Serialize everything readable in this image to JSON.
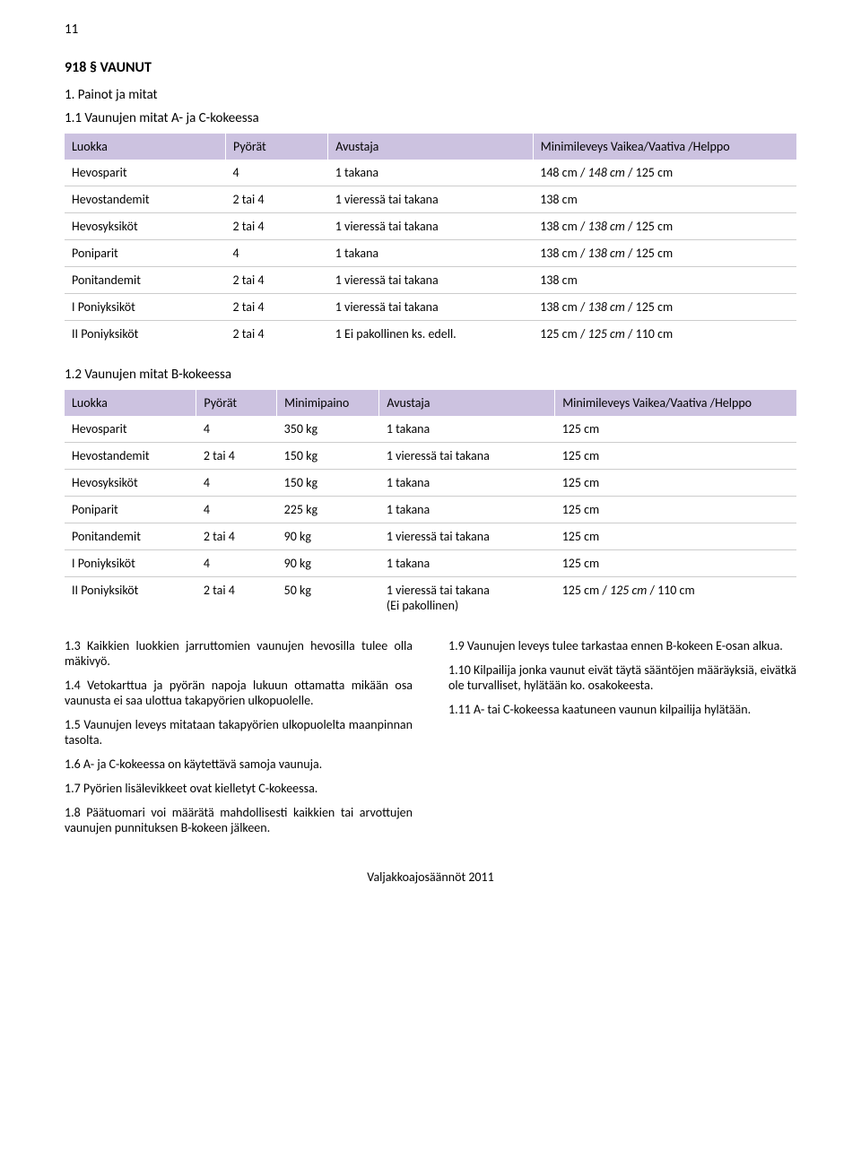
{
  "page_number": "11",
  "section_title": "918 § VAUNUT",
  "intro_1": "1. Painot ja mitat",
  "intro_2": "1.1 Vaunujen mitat A- ja C-kokeessa",
  "table1": {
    "headers": [
      "Luokka",
      "Pyörät",
      "Avustaja",
      "Minimileveys Vaikea/Vaativa /Helppo"
    ],
    "rows": [
      [
        "Hevosparit",
        "4",
        "1 takana",
        "148 cm / 148 cm / 125 cm"
      ],
      [
        "Hevostandemit",
        "2 tai 4",
        "1 vieressä tai takana",
        "138 cm"
      ],
      [
        "Hevosyksiköt",
        "2 tai 4",
        "1 vieressä tai takana",
        "138 cm / 138 cm / 125 cm"
      ],
      [
        "Poniparit",
        "4",
        "1 takana",
        "138 cm / 138 cm / 125 cm"
      ],
      [
        "Ponitandemit",
        "2 tai 4",
        "1 vieressä tai takana",
        "138 cm"
      ],
      [
        "I Poniyksiköt",
        "2 tai 4",
        "1 vieressä tai takana",
        "138 cm / 138 cm / 125 cm"
      ],
      [
        "II Poniyksiköt",
        "2 tai 4",
        "1 Ei pakollinen ks. edell.",
        "125 cm / 125 cm / 110 cm"
      ]
    ]
  },
  "intro_3": "1.2 Vaunujen mitat B-kokeessa",
  "table2": {
    "headers": [
      "Luokka",
      "Pyörät",
      "Minimipaino",
      "Avustaja",
      "Minimileveys Vaikea/Vaativa /Helppo"
    ],
    "rows": [
      [
        "Hevosparit",
        "4",
        "350 kg",
        "1 takana",
        "125 cm"
      ],
      [
        "Hevostandemit",
        "2 tai 4",
        "150 kg",
        "1 vieressä tai takana",
        "125 cm"
      ],
      [
        "Hevosyksiköt",
        "4",
        "150 kg",
        "1 takana",
        "125 cm"
      ],
      [
        "Poniparit",
        "4",
        "225 kg",
        "1 takana",
        "125 cm"
      ],
      [
        "Ponitandemit",
        "2 tai 4",
        "90 kg",
        "1 vieressä tai takana",
        "125 cm"
      ],
      [
        "I Poniyksiköt",
        "4",
        "90 kg",
        "1 takana",
        "125 cm"
      ],
      [
        "II Poniyksiköt",
        "2 tai 4",
        "50 kg",
        "1 vieressä tai takana\n (Ei pakollinen)",
        "125 cm / 125 cm / 110 cm"
      ]
    ]
  },
  "left_paras": [
    "1.3 Kaikkien luokkien jarruttomien vaunujen hevosilla tulee olla mäkivyö.",
    "1.4 Vetokarttua ja pyörän napoja lukuun ottamatta mikään osa vaunusta ei saa ulottua takapyörien ulkopuolelle.",
    "1.5 Vaunujen leveys mitataan takapyörien ulkopuolelta maanpinnan tasolta.",
    "1.6 A- ja C-kokeessa on käytettävä samoja vaunuja.",
    "1.7 Pyörien lisälevikkeet ovat kielletyt C-kokeessa.",
    "1.8 Päätuomari voi määrätä mahdollisesti kaikkien tai arvottujen vaunujen punnituksen B-kokeen jälkeen."
  ],
  "right_paras": [
    "1.9 Vaunujen leveys tulee tarkastaa ennen B-kokeen E-osan alkua.",
    "1.10 Kilpailija jonka vaunut eivät täytä sääntöjen määräyksiä, eivätkä ole turvalliset, hylätään ko. osakokeesta.",
    "1.11 A- tai C-kokeessa kaatuneen vaunun kilpailija hylätään."
  ],
  "footer": "Valjakkoajosäännöt 2011"
}
